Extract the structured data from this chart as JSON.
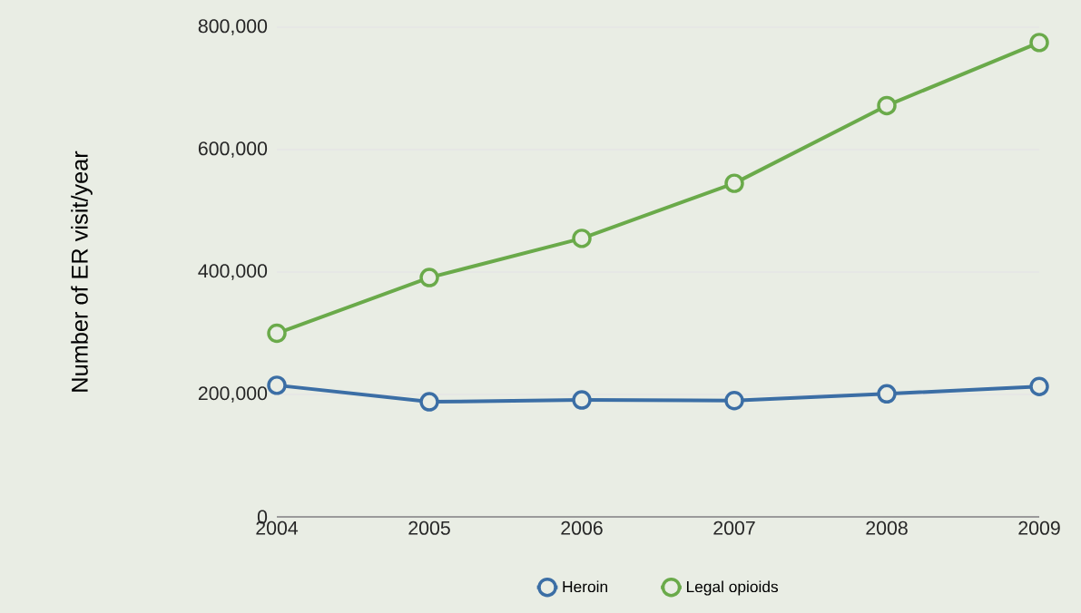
{
  "chart_data": {
    "type": "line",
    "ylabel": "Number of ER visit/year",
    "x": [
      2004,
      2005,
      2006,
      2007,
      2008,
      2009
    ],
    "series": [
      {
        "name": "Heroin",
        "color": "#3b6ea5",
        "values": [
          215000,
          188000,
          191000,
          190000,
          201000,
          213000
        ]
      },
      {
        "name": "Legal opioids",
        "color": "#6aaa4a",
        "values": [
          300000,
          391000,
          455000,
          545000,
          672000,
          775000
        ]
      }
    ],
    "xlim": [
      2004,
      2009
    ],
    "xticks": [
      2004,
      2005,
      2006,
      2007,
      2008,
      2009
    ],
    "ylim": [
      0,
      800000
    ],
    "yticks": [
      {
        "value": 0,
        "label": "0"
      },
      {
        "value": 200000,
        "label": "200,000"
      },
      {
        "value": 400000,
        "label": "400,000"
      },
      {
        "value": 600000,
        "label": "600,000"
      },
      {
        "value": 800000,
        "label": "800,000"
      }
    ],
    "grid": "y",
    "legend": "bottom",
    "marker": "circle",
    "line_style": "solid"
  }
}
